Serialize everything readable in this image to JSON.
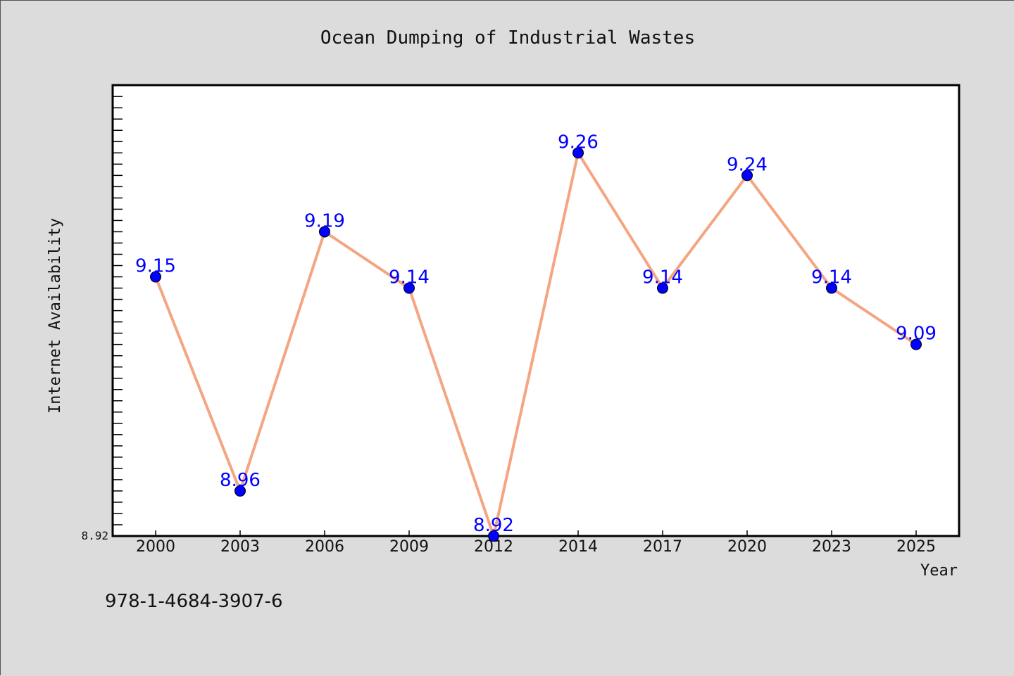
{
  "isbn": "978-1-4684-3907-6",
  "colors": {
    "background": "#dcdcdc",
    "plot_background": "#ffffff",
    "line": "#f4a582",
    "marker": "#0000ff",
    "data_label": "#0000ff"
  },
  "chart_data": {
    "type": "line",
    "title": "Ocean Dumping of Industrial Wastes",
    "xlabel": "Year",
    "ylabel": "Internet Availability",
    "categories": [
      "2000",
      "2003",
      "2006",
      "2009",
      "2012",
      "2014",
      "2017",
      "2020",
      "2023",
      "2025"
    ],
    "series": [
      {
        "values": [
          9.15,
          8.96,
          9.19,
          9.14,
          8.92,
          9.26,
          9.14,
          9.24,
          9.14,
          9.09
        ],
        "labels": [
          "9.15",
          "8.96",
          "9.19",
          "9.14",
          "8.92",
          "9.26",
          "9.14",
          "9.24",
          "9.14",
          "9.09"
        ]
      }
    ],
    "ylim": [
      8.92,
      9.32
    ],
    "yticks": [
      8.92
    ],
    "ytick_labels": [
      "8.92"
    ],
    "y_minor_tick_step": 0.01,
    "grid": false,
    "legend": "none"
  }
}
